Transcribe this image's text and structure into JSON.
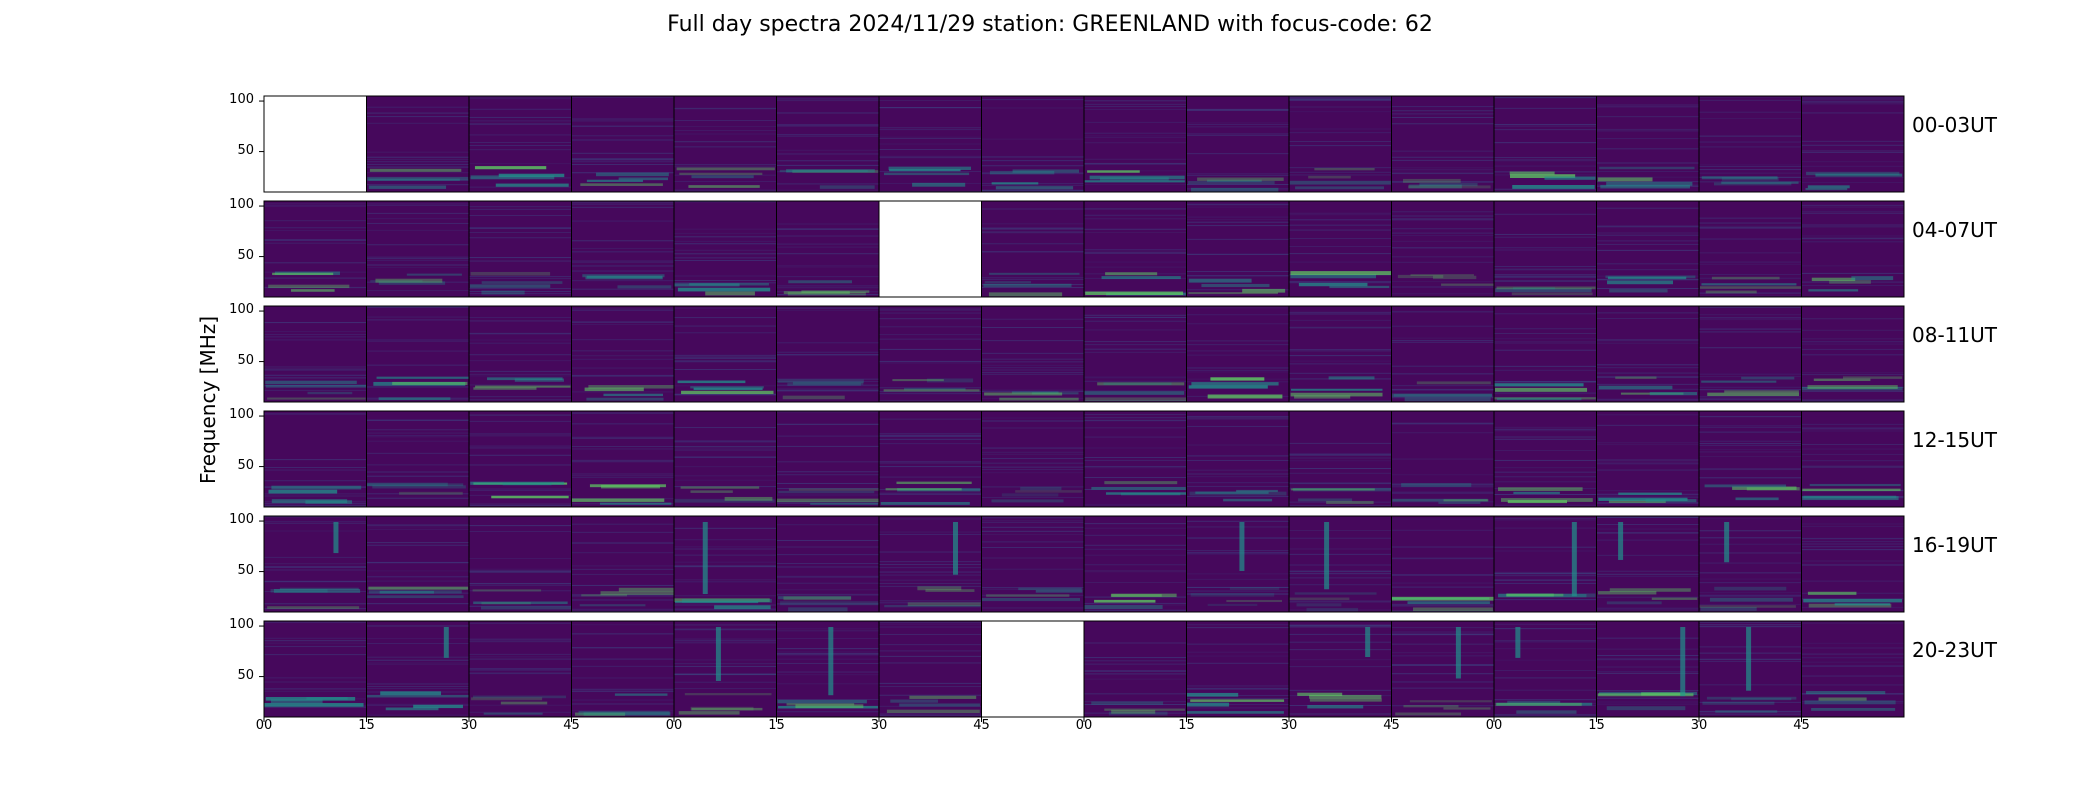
{
  "chart_data": {
    "type": "heatmap",
    "title": "Full day spectra 2024/11/29 station: GREENLAND with focus-code: 62",
    "ylabel": "Frequency [MHz]",
    "xlabel": "",
    "ylim": [
      10,
      105
    ],
    "yticks": [
      50,
      100
    ],
    "xtick_labels": [
      "00",
      "15",
      "30",
      "45",
      "00",
      "15",
      "30",
      "45",
      "00",
      "15",
      "30",
      "45",
      "00",
      "15",
      "30",
      "45"
    ],
    "colormap": "viridis",
    "rows": [
      {
        "label": "00-03UT",
        "missing_panels": [
          0
        ]
      },
      {
        "label": "04-07UT",
        "missing_panels": [
          6
        ]
      },
      {
        "label": "08-11UT",
        "missing_panels": []
      },
      {
        "label": "12-15UT",
        "missing_panels": []
      },
      {
        "label": "16-19UT",
        "missing_panels": []
      },
      {
        "label": "20-23UT",
        "missing_panels": [
          7
        ]
      }
    ],
    "panels_per_row": 16
  },
  "colors": {
    "background": "#440154",
    "base": "#46085c",
    "mid": "#3b528b",
    "teal": "#21918c",
    "bright": "#5ec962",
    "peak": "#fde725"
  }
}
